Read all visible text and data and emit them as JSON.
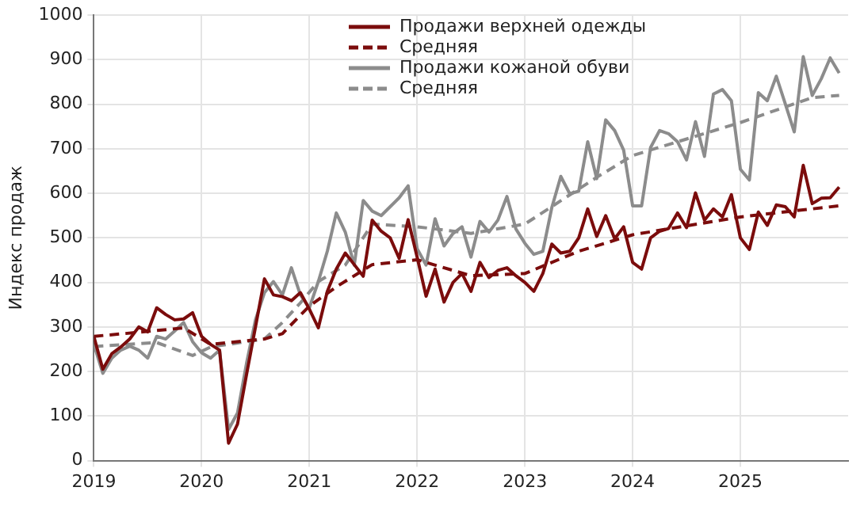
{
  "chart_data": {
    "type": "line",
    "ylabel": "Индекс продаж",
    "xlim": [
      "2019-01",
      "2026-01"
    ],
    "xticks": [
      "2019",
      "2020",
      "2021",
      "2022",
      "2023",
      "2024",
      "2025"
    ],
    "ylim": [
      0,
      1000
    ],
    "yticks": [
      0,
      100,
      200,
      300,
      400,
      500,
      600,
      700,
      800,
      900,
      1000
    ],
    "grid": true,
    "legend": "top",
    "marker": "none",
    "x": [
      "2019-01",
      "2019-02",
      "2019-03",
      "2019-04",
      "2019-05",
      "2019-06",
      "2019-07",
      "2019-08",
      "2019-09",
      "2019-10",
      "2019-11",
      "2019-12",
      "2020-01",
      "2020-02",
      "2020-03",
      "2020-04",
      "2020-05",
      "2020-06",
      "2020-07",
      "2020-08",
      "2020-09",
      "2020-10",
      "2020-11",
      "2020-12",
      "2021-01",
      "2021-02",
      "2021-03",
      "2021-04",
      "2021-05",
      "2021-06",
      "2021-07",
      "2021-08",
      "2021-09",
      "2021-10",
      "2021-11",
      "2021-12",
      "2022-01",
      "2022-02",
      "2022-03",
      "2022-04",
      "2022-05",
      "2022-06",
      "2022-07",
      "2022-08",
      "2022-09",
      "2022-10",
      "2022-11",
      "2022-12",
      "2023-01",
      "2023-02",
      "2023-03",
      "2023-04",
      "2023-05",
      "2023-06",
      "2023-07",
      "2023-08",
      "2023-09",
      "2023-10",
      "2023-11",
      "2023-12",
      "2024-01",
      "2024-02",
      "2024-03",
      "2024-04",
      "2024-05",
      "2024-06",
      "2024-07",
      "2024-08",
      "2024-09",
      "2024-10",
      "2024-11",
      "2024-12",
      "2025-01",
      "2025-02",
      "2025-03",
      "2025-04",
      "2025-05",
      "2025-06",
      "2025-07",
      "2025-08",
      "2025-09",
      "2025-10",
      "2025-11",
      "2025-12"
    ],
    "series": [
      {
        "name": "Продажи верхней одежды",
        "color": "#7b0c0c",
        "values": [
          279,
          205,
          240,
          255,
          273,
          300,
          289,
          343,
          328,
          316,
          318,
          332,
          279,
          261,
          248,
          39,
          82,
          193,
          300,
          408,
          372,
          368,
          359,
          377,
          340,
          298,
          380,
          430,
          466,
          440,
          414,
          540,
          515,
          500,
          454,
          541,
          457,
          369,
          430,
          356,
          400,
          420,
          380,
          445,
          411,
          427,
          433,
          415,
          400,
          380,
          420,
          486,
          466,
          470,
          500,
          565,
          503,
          550,
          498,
          525,
          445,
          430,
          500,
          515,
          521,
          556,
          523,
          601,
          540,
          565,
          547,
          597,
          500,
          474,
          558,
          528,
          574,
          570,
          547,
          663,
          577,
          589,
          590,
          614
        ]
      },
      {
        "name": "Средняя",
        "color": "#7b0c0c",
        "line_style": "dashed",
        "x": [
          "2019-01",
          "2019-06",
          "2019-11",
          "2020-02",
          "2020-08",
          "2020-10",
          "2021-01",
          "2021-04",
          "2021-08",
          "2022-01",
          "2022-07",
          "2023-01",
          "2023-07",
          "2024-01",
          "2025-01",
          "2025-12"
        ],
        "values": [
          279,
          288,
          298,
          261,
          273,
          285,
          347,
          390,
          440,
          451,
          415,
          420,
          470,
          507,
          547,
          572
        ]
      },
      {
        "name": "Продажи кожаной обуви",
        "color": "#8c8c8c",
        "values": [
          261,
          196,
          230,
          248,
          257,
          248,
          230,
          279,
          273,
          291,
          310,
          267,
          242,
          230,
          248,
          70,
          107,
          218,
          316,
          377,
          402,
          372,
          433,
          372,
          343,
          402,
          470,
          556,
          513,
          439,
          584,
          560,
          550,
          570,
          590,
          617,
          476,
          439,
          543,
          482,
          510,
          525,
          457,
          537,
          513,
          540,
          593,
          520,
          488,
          463,
          470,
          568,
          638,
          599,
          605,
          716,
          633,
          765,
          741,
          697,
          572,
          572,
          703,
          741,
          734,
          716,
          675,
          761,
          683,
          823,
          833,
          808,
          654,
          630,
          826,
          808,
          863,
          801,
          738,
          907,
          820,
          857,
          904,
          870
        ]
      },
      {
        "name": "Средняя",
        "color": "#8c8c8c",
        "line_style": "dashed",
        "x": [
          "2019-01",
          "2019-08",
          "2019-12",
          "2020-02",
          "2020-08",
          "2020-10",
          "2020-12",
          "2021-02",
          "2021-05",
          "2021-08",
          "2022-01",
          "2022-07",
          "2023-01",
          "2023-09",
          "2024-01",
          "2025-01",
          "2025-09",
          "2025-12"
        ],
        "values": [
          256,
          265,
          236,
          255,
          273,
          310,
          354,
          402,
          439,
          531,
          525,
          510,
          531,
          636,
          685,
          759,
          815,
          820
        ]
      }
    ]
  }
}
